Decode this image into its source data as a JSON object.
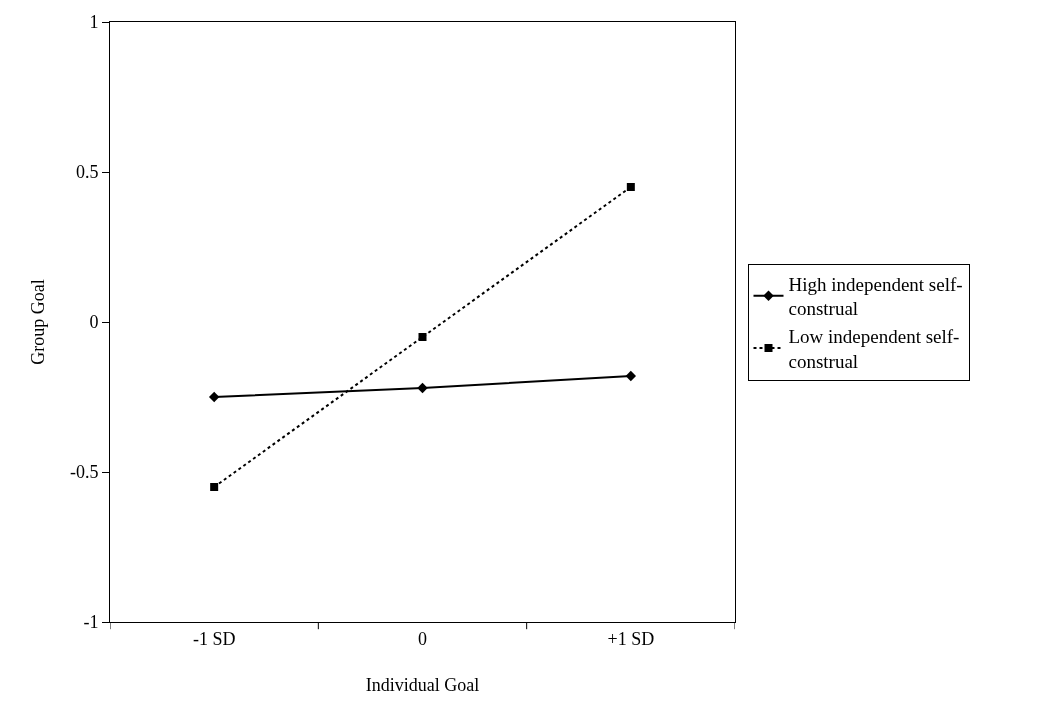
{
  "chart_data": {
    "type": "line",
    "xlabel": "Individual Goal",
    "ylabel": "Group Goal",
    "categories": [
      "-1 SD",
      "0",
      "+1 SD"
    ],
    "series": [
      {
        "name": "High independent self-construal",
        "color": "#000000",
        "values": [
          -0.25,
          -0.22,
          -0.18
        ],
        "marker": "diamond",
        "line_style": "solid"
      },
      {
        "name": "Low independent self-construal",
        "color": "#000000",
        "values": [
          -0.55,
          -0.05,
          0.45
        ],
        "marker": "square",
        "line_style": "dotted"
      }
    ],
    "ylim": [
      -1,
      1
    ],
    "yticks": [
      -1,
      -0.5,
      0,
      0.5,
      1
    ],
    "grid": false,
    "legend": "right"
  }
}
